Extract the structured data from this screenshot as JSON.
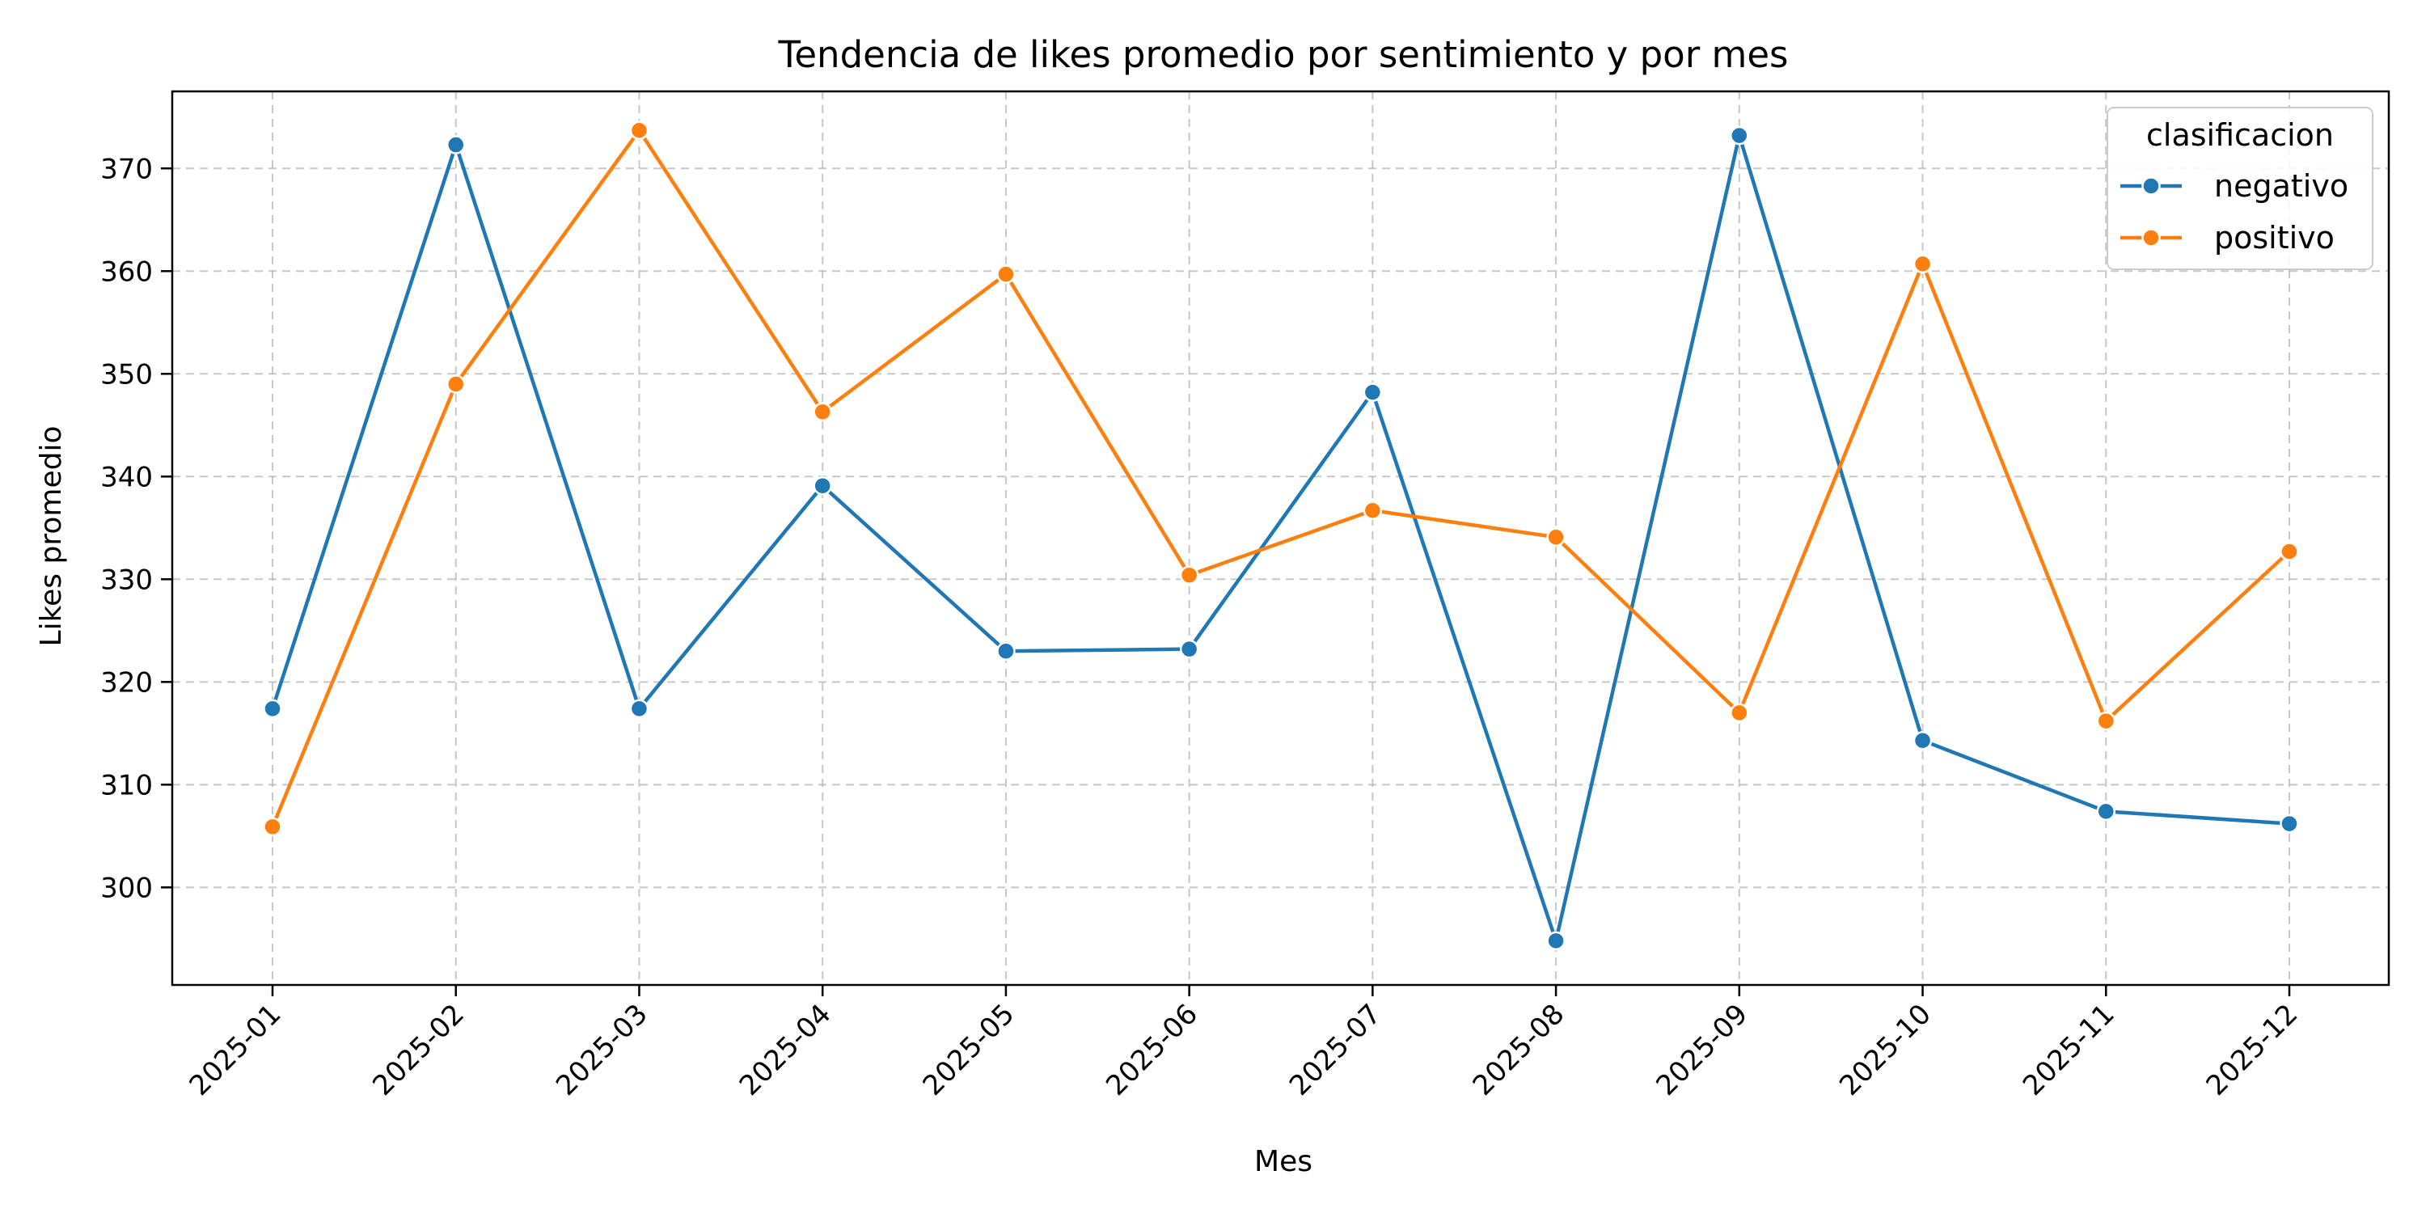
{
  "chart_data": {
    "type": "line",
    "title": "Tendencia de likes promedio por sentimiento y por mes",
    "xlabel": "Mes",
    "ylabel": "Likes promedio",
    "categories": [
      "2025-01",
      "2025-02",
      "2025-03",
      "2025-04",
      "2025-05",
      "2025-06",
      "2025-07",
      "2025-08",
      "2025-09",
      "2025-10",
      "2025-11",
      "2025-12"
    ],
    "ylim": [
      290.5,
      377.5
    ],
    "yticks": [
      300,
      310,
      320,
      330,
      340,
      350,
      360,
      370
    ],
    "grid": true,
    "legend": {
      "title": "clasificacion",
      "placement": "top-right"
    },
    "series": [
      {
        "name": "negativo",
        "color": "#1f77b4",
        "values": [
          317.4,
          372.3,
          317.4,
          339.1,
          323.0,
          323.2,
          348.2,
          294.8,
          373.2,
          314.3,
          307.4,
          306.2
        ]
      },
      {
        "name": "positivo",
        "color": "#ff7f0e",
        "values": [
          305.9,
          349.0,
          373.7,
          346.3,
          359.7,
          330.4,
          336.7,
          334.1,
          317.0,
          360.7,
          316.2,
          332.7
        ]
      }
    ]
  }
}
